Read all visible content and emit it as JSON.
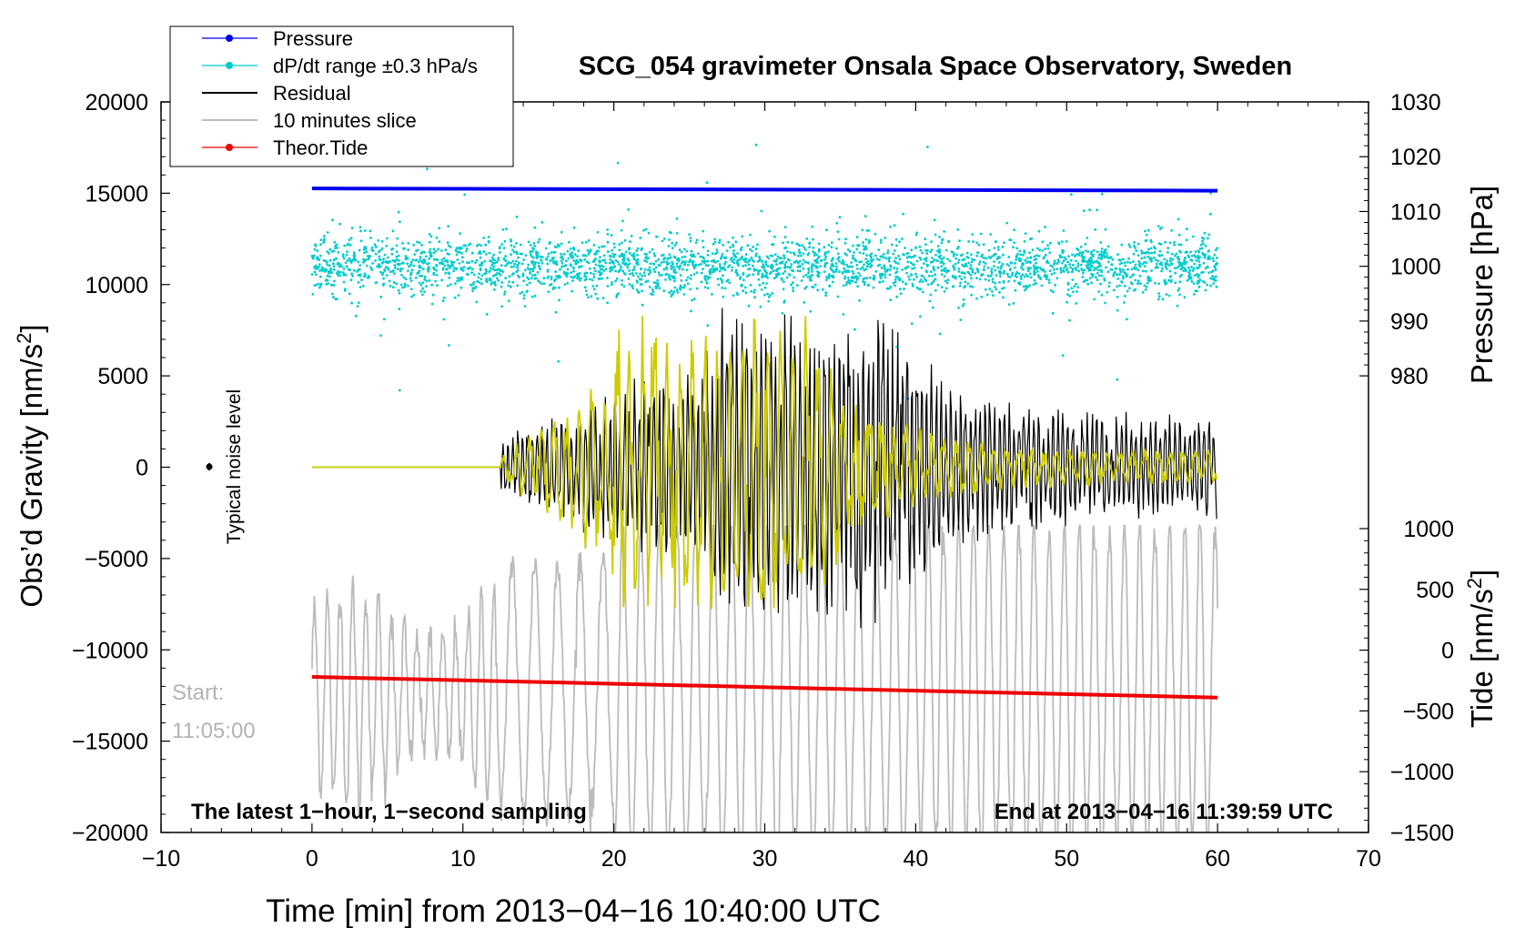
{
  "chart_data": {
    "type": "line",
    "title": "SCG_054 gravimeter Onsala Space Observatory, Sweden",
    "xlabel": "Time [min] from 2013−04−16 10:40:00 UTC",
    "ylabel_left_main": "Obs’d Gravity [nm/s",
    "ylabel_left_sup": "2",
    "ylabel_left_end": "]",
    "ylabel_right_pressure": "Pressure [hPa]",
    "ylabel_right_tide_main": "Tide [nm/s",
    "ylabel_right_tide_sup": "2",
    "ylabel_right_tide_end": "]",
    "xlim": [
      -10,
      70
    ],
    "ylim": [
      -20000,
      20000
    ],
    "pressure_lim": [
      980,
      1030
    ],
    "tide_lim": [
      -1500,
      1000
    ],
    "x_ticks": [
      -10,
      0,
      10,
      20,
      30,
      40,
      50,
      60,
      70
    ],
    "x_tick_labels": [
      "−10",
      "0",
      "10",
      "20",
      "30",
      "40",
      "50",
      "60",
      "70"
    ],
    "y_ticks": [
      20000,
      15000,
      10000,
      5000,
      0,
      -5000,
      -10000,
      -15000,
      -20000
    ],
    "y_tick_labels": [
      "20000",
      "15000",
      "10000",
      "5000",
      "0",
      "−5000",
      "−10000",
      "−15000",
      "−20000"
    ],
    "pressure_ticks": [
      1030,
      1020,
      1010,
      1000,
      990,
      980
    ],
    "pressure_tick_labels": [
      "1030",
      "1020",
      "1010",
      "1000",
      "990",
      "980"
    ],
    "tide_ticks": [
      1000,
      500,
      0,
      -500,
      -1000,
      -1500
    ],
    "tide_tick_labels": [
      "1000",
      "500",
      "0",
      "−500",
      "−1000",
      "−1500"
    ],
    "legend_position": "top-left",
    "legend": [
      {
        "label": "Pressure",
        "color": "#0000ee",
        "marker": true
      },
      {
        "label": "dP/dt range ±0.3 hPa/s",
        "color": "#00cccc",
        "marker": true
      },
      {
        "label": "Residual",
        "color": "#000000",
        "marker": false
      },
      {
        "label": "10 minutes slice",
        "color": "#bbbbbb",
        "marker": false
      },
      {
        "label": "Theor.Tide",
        "color": "#ee0000",
        "marker": true
      }
    ],
    "annotations": {
      "noise_label": "Typical noise level",
      "start_label": "Start:",
      "start_time": "11:05:00",
      "bottom_left": "The latest 1−hour, 1−second sampling",
      "bottom_right": "End at 2013−04−16 11:39:59 UTC"
    },
    "series": [
      {
        "name": "Pressure",
        "axis": "pressure",
        "color": "#0000ee",
        "x_range": [
          0,
          60
        ],
        "y_start": 1014.2,
        "y_end": 1013.8
      },
      {
        "name": "dP/dt range ±0.3 hPa/s",
        "axis": "pressure",
        "color": "#00cccc",
        "x_range": [
          0,
          60
        ],
        "y_center": 1000,
        "y_spread": 6
      },
      {
        "name": "Residual",
        "axis": "gravity",
        "color": "#000000",
        "x_range": [
          0,
          60
        ],
        "quiet_until": 12.5,
        "peak_amplitude": 9000,
        "peak_window": [
          27,
          38
        ],
        "tail_amplitude": 3000
      },
      {
        "name": "Filtered residual",
        "axis": "gravity",
        "color": "#cccc00",
        "x_range": [
          0,
          60
        ],
        "quiet_until": 12.5,
        "peak_amplitude": 8500,
        "peak_window": [
          20,
          33
        ],
        "tail_amplitude": 1000
      },
      {
        "name": "10 minutes slice",
        "axis": "gravity",
        "color": "#bbbbbb",
        "x_range": [
          0,
          60
        ],
        "clip": [
          -20500,
          -3200
        ]
      },
      {
        "name": "Theor.Tide",
        "axis": "tide",
        "color": "#ee0000",
        "x_range": [
          0,
          60
        ],
        "y_start": -220,
        "y_end": -390
      }
    ]
  }
}
